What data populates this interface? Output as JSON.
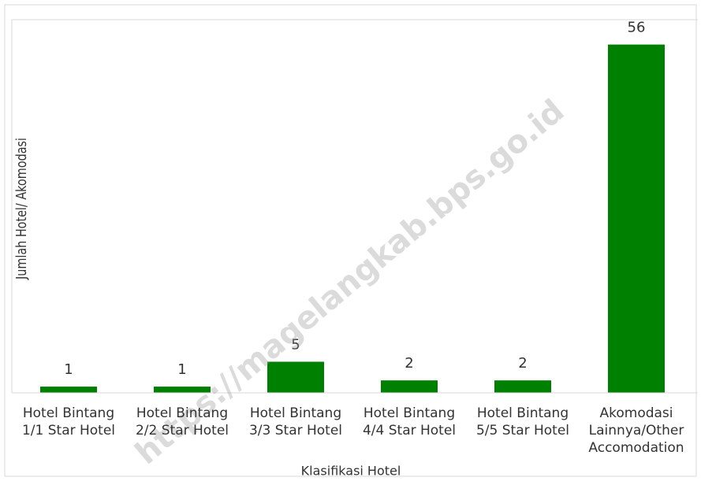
{
  "chart_data": {
    "type": "bar",
    "categories": [
      "Hotel Bintang 1/1 Star Hotel",
      "Hotel Bintang 2/2 Star Hotel",
      "Hotel Bintang 3/3 Star Hotel",
      "Hotel Bintang 4/4 Star Hotel",
      "Hotel Bintang 5/5 Star Hotel",
      "Akomodasi Lainnya/Other Accomodation"
    ],
    "values": [
      1,
      1,
      5,
      2,
      2,
      56
    ],
    "color": "#008000",
    "ylim": [
      0,
      60
    ],
    "x_label": "Klasifikasi Hotel",
    "y_label": "Jumlah Hotel/ Akomodasi",
    "watermark": "https://magelangkab.bps.go.id"
  }
}
